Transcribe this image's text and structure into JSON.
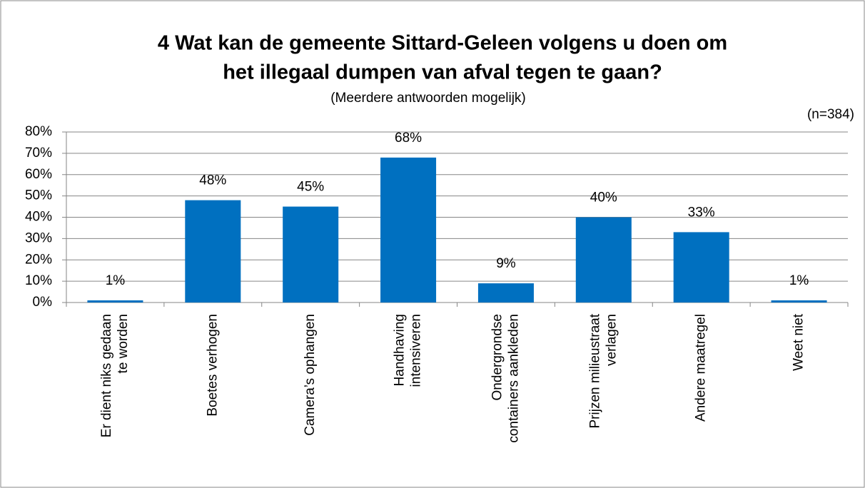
{
  "chart_data": {
    "type": "bar",
    "title": [
      "4 Wat kan de gemeente Sittard-Geleen volgens u doen om",
      "het illegaal dumpen van afval tegen te gaan?"
    ],
    "subtitle": "(Meerdere antwoorden mogelijk)",
    "annotation": "(n=384)",
    "categories": [
      "Er dient niks gedaan te worden",
      "Boetes verhogen",
      "Camera’s ophangen",
      "Handhaving intensiveren",
      "Ondergrondse containers aankleden",
      "Prijzen milieustraat verlagen",
      "Andere maatregel",
      "Weet niet"
    ],
    "values": [
      1,
      48,
      45,
      68,
      9,
      40,
      33,
      1
    ],
    "value_labels": [
      "1%",
      "48%",
      "45%",
      "68%",
      "9%",
      "40%",
      "33%",
      "1%"
    ],
    "color": "#0070c0",
    "ylim": [
      0,
      80
    ],
    "yticks": [
      {
        "value": 0,
        "label": "0%"
      },
      {
        "value": 10,
        "label": "10%"
      },
      {
        "value": 20,
        "label": "20%"
      },
      {
        "value": 30,
        "label": "30%"
      },
      {
        "value": 40,
        "label": "40%"
      },
      {
        "value": 50,
        "label": "50%"
      },
      {
        "value": 60,
        "label": "60%"
      },
      {
        "value": 70,
        "label": "70%"
      },
      {
        "value": 80,
        "label": "80%"
      }
    ],
    "grid": true
  }
}
